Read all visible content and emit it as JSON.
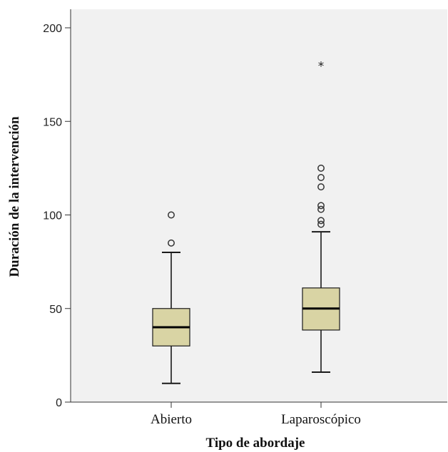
{
  "chart_data": {
    "type": "boxplot",
    "xlabel": "Tipo de abordaje",
    "ylabel": "Duración de la intervención",
    "ylim": [
      0,
      200
    ],
    "yticks": [
      0,
      50,
      100,
      150,
      200
    ],
    "grid": false,
    "colors": {
      "plot_background": "#f1f1f1",
      "box_fill": "#d9d4a4",
      "box_stroke": "#1a1a1a"
    },
    "categories": [
      "Abierto",
      "Laparoscópico"
    ],
    "series": [
      {
        "category": "Abierto",
        "whisker_low": 10,
        "q1": 30,
        "median": 40,
        "q3": 50,
        "whisker_high": 80,
        "outliers": [
          85,
          100
        ],
        "extremes": []
      },
      {
        "category": "Laparoscópico",
        "whisker_low": 16,
        "q1": 38.5,
        "median": 50,
        "q3": 61,
        "whisker_high": 91,
        "outliers": [
          95,
          97,
          103,
          105,
          115,
          120,
          125
        ],
        "extremes": [
          180
        ]
      }
    ]
  }
}
